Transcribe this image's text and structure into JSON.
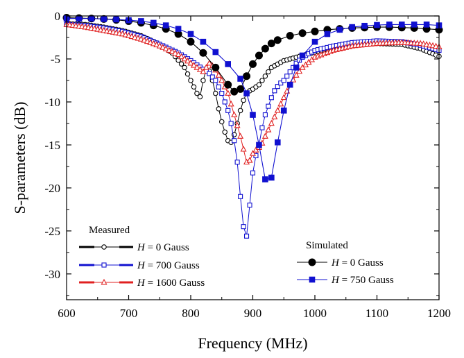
{
  "chart_data": {
    "type": "line",
    "xlabel": "Frequency (MHz)",
    "ylabel": "S-parameters (dB)",
    "xlim": [
      600,
      1200
    ],
    "ylim": [
      -33,
      0
    ],
    "xticks": [
      600,
      700,
      800,
      900,
      1000,
      1100,
      1200
    ],
    "yticks": [
      0,
      -5,
      -10,
      -15,
      -20,
      -25,
      -30
    ],
    "legend_measured_title": "Measured",
    "legend_simulated_title": "Simulated",
    "field_symbol": "H",
    "series": [
      {
        "name": "Measured H = 0 Gauss",
        "label_value": " = 0 Gauss",
        "group": "measured",
        "color": "#000000",
        "marker": "circle-open",
        "x": [
          600,
          630,
          660,
          690,
          720,
          750,
          770,
          790,
          800,
          810,
          815,
          820,
          825,
          830,
          835,
          840,
          845,
          850,
          855,
          860,
          865,
          870,
          875,
          880,
          885,
          890,
          895,
          900,
          910,
          920,
          930,
          950,
          970,
          1000,
          1030,
          1060,
          1100,
          1140,
          1170,
          1200
        ],
        "y": [
          -0.9,
          -1.0,
          -1.3,
          -1.7,
          -2.3,
          -3.3,
          -4.3,
          -6.0,
          -7.5,
          -9.0,
          -9.4,
          -7.5,
          -6.2,
          -6.4,
          -7.5,
          -9.0,
          -10.8,
          -12.3,
          -13.5,
          -14.5,
          -14.7,
          -13.8,
          -12.5,
          -11.0,
          -9.8,
          -9.0,
          -8.7,
          -8.5,
          -8.0,
          -7.0,
          -6.0,
          -5.2,
          -4.8,
          -4.2,
          -3.7,
          -3.4,
          -3.2,
          -3.3,
          -3.8,
          -4.7
        ]
      },
      {
        "name": "Measured H = 700 Gauss",
        "label_value": " = 700 Gauss",
        "group": "measured",
        "color": "#1010d0",
        "marker": "square-open",
        "x": [
          600,
          630,
          660,
          690,
          720,
          750,
          780,
          800,
          820,
          830,
          840,
          850,
          860,
          865,
          870,
          875,
          880,
          885,
          888,
          892,
          895,
          898,
          902,
          906,
          910,
          915,
          920,
          925,
          930,
          935,
          940,
          945,
          950,
          960,
          970,
          980,
          1000,
          1030,
          1060,
          1100,
          1140,
          1170,
          1200
        ],
        "y": [
          -1.0,
          -1.1,
          -1.4,
          -1.8,
          -2.4,
          -3.3,
          -4.3,
          -5.2,
          -6.2,
          -6.7,
          -7.5,
          -9.0,
          -11.0,
          -12.5,
          -14.5,
          -17.0,
          -21.0,
          -24.5,
          -26.2,
          -25.0,
          -22.0,
          -19.5,
          -17.0,
          -16.0,
          -15.0,
          -13.0,
          -11.5,
          -10.5,
          -9.5,
          -8.7,
          -8.2,
          -7.8,
          -7.5,
          -6.5,
          -5.5,
          -4.8,
          -4.0,
          -3.5,
          -3.1,
          -2.9,
          -3.0,
          -3.4,
          -4.0
        ]
      },
      {
        "name": "Measured H = 1600 Gauss",
        "label_value": " = 1600 Gauss",
        "group": "measured",
        "color": "#e02020",
        "marker": "triangle-open",
        "x": [
          600,
          630,
          660,
          690,
          720,
          750,
          780,
          800,
          820,
          825,
          830,
          835,
          840,
          850,
          860,
          870,
          880,
          885,
          890,
          895,
          900,
          905,
          910,
          915,
          920,
          930,
          940,
          950,
          960,
          970,
          980,
          1000,
          1030,
          1060,
          1100,
          1140,
          1170,
          1200
        ],
        "y": [
          -1.0,
          -1.3,
          -1.7,
          -2.1,
          -2.7,
          -3.5,
          -4.5,
          -5.5,
          -6.5,
          -6.0,
          -5.5,
          -5.8,
          -6.3,
          -7.5,
          -9.0,
          -11.5,
          -14.0,
          -15.5,
          -17.0,
          -16.8,
          -16.0,
          -15.6,
          -15.3,
          -14.8,
          -14.0,
          -12.5,
          -11.0,
          -9.5,
          -8.0,
          -6.9,
          -6.0,
          -4.8,
          -4.0,
          -3.5,
          -3.2,
          -3.1,
          -3.2,
          -3.6
        ]
      },
      {
        "name": "Simulated H = 0 Gauss",
        "label_value": " = 0 Gauss",
        "group": "simulated",
        "color": "#000000",
        "marker": "circle-filled",
        "x": [
          600,
          620,
          640,
          660,
          680,
          700,
          720,
          740,
          760,
          780,
          800,
          820,
          840,
          860,
          870,
          880,
          890,
          900,
          910,
          920,
          930,
          940,
          960,
          980,
          1000,
          1020,
          1040,
          1060,
          1080,
          1100,
          1120,
          1140,
          1160,
          1180,
          1200
        ],
        "y": [
          -0.2,
          -0.25,
          -0.3,
          -0.35,
          -0.45,
          -0.6,
          -0.8,
          -1.1,
          -1.5,
          -2.1,
          -3.0,
          -4.3,
          -6.0,
          -8.0,
          -8.8,
          -8.5,
          -7.0,
          -5.6,
          -4.6,
          -3.8,
          -3.2,
          -2.8,
          -2.3,
          -2.0,
          -1.8,
          -1.6,
          -1.5,
          -1.4,
          -1.35,
          -1.3,
          -1.3,
          -1.35,
          -1.4,
          -1.5,
          -1.6
        ]
      },
      {
        "name": "Simulated H = 750 Gauss",
        "label_value": " = 750 Gauss",
        "group": "simulated",
        "color": "#1010d0",
        "marker": "square-filled",
        "x": [
          600,
          620,
          640,
          660,
          680,
          700,
          720,
          740,
          760,
          780,
          800,
          820,
          840,
          860,
          880,
          890,
          900,
          910,
          920,
          930,
          940,
          950,
          960,
          970,
          980,
          1000,
          1020,
          1040,
          1060,
          1080,
          1100,
          1120,
          1140,
          1160,
          1180,
          1200
        ],
        "y": [
          -0.3,
          -0.3,
          -0.3,
          -0.35,
          -0.4,
          -0.5,
          -0.6,
          -0.8,
          -1.1,
          -1.5,
          -2.1,
          -3.0,
          -4.2,
          -5.6,
          -7.3,
          -9.0,
          -11.5,
          -15.0,
          -19.0,
          -18.8,
          -14.7,
          -11.0,
          -8.0,
          -6.0,
          -4.6,
          -3.0,
          -2.1,
          -1.6,
          -1.3,
          -1.15,
          -1.05,
          -1.0,
          -1.0,
          -1.0,
          -1.0,
          -1.1
        ]
      }
    ],
    "legend_order": {
      "measured": [
        0,
        1,
        2
      ],
      "simulated": [
        3,
        4
      ]
    }
  }
}
